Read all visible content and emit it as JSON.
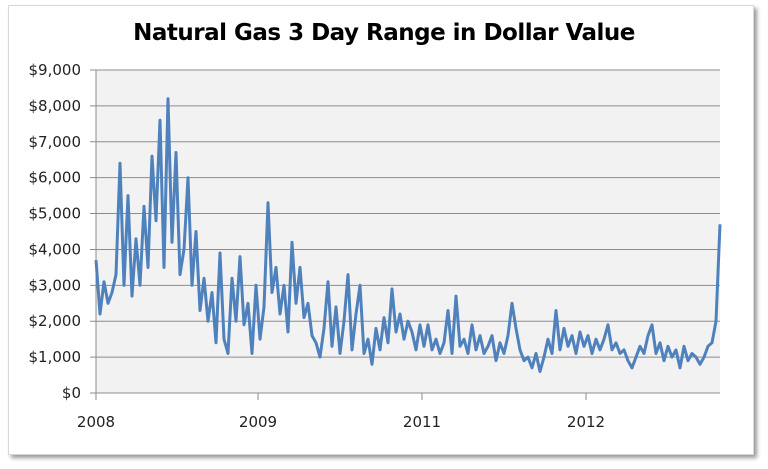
{
  "chart_data": {
    "type": "line",
    "title": "Natural Gas 3 Day Range in Dollar Value",
    "xlabel": "",
    "ylabel": "",
    "ylim": [
      0,
      9000
    ],
    "y_ticks": [
      0,
      1000,
      2000,
      3000,
      4000,
      5000,
      6000,
      7000,
      8000,
      9000
    ],
    "y_tick_labels": [
      "$0",
      "$1,000",
      "$2,000",
      "$3,000",
      "$4,000",
      "$5,000",
      "$6,000",
      "$7,000",
      "$8,000",
      "$9,000"
    ],
    "x_tick_labels": [
      "2008",
      "2009",
      "2011",
      "2012"
    ],
    "x_tick_point_index": [
      0,
      40.5,
      81.5,
      122.5
    ],
    "grid": "horizontal",
    "plot_background": "#f2f2f2",
    "line_color": "#4f81bd",
    "series": [
      {
        "values": [
          3700,
          2200,
          3100,
          2500,
          2800,
          3300,
          6400,
          3000,
          5500,
          2700,
          4300,
          3000,
          5200,
          3500,
          6600,
          4800,
          7600,
          3500,
          8200,
          4200,
          6700,
          3300,
          4000,
          6000,
          3000,
          4500,
          2300,
          3200,
          2000,
          2800,
          1400,
          3900,
          1500,
          1100,
          3200,
          2000,
          3800,
          1900,
          2500,
          1100,
          3000,
          1500,
          2400,
          5300,
          2800,
          3500,
          2200,
          3000,
          1700,
          4200,
          2500,
          3500,
          2100,
          2500,
          1600,
          1400,
          1000,
          1800,
          3100,
          1300,
          2400,
          1100,
          2000,
          3300,
          1200,
          2200,
          3000,
          1100,
          1500,
          800,
          1800,
          1200,
          2100,
          1400,
          2900,
          1700,
          2200,
          1500,
          2000,
          1700,
          1200,
          1900,
          1300,
          1900,
          1200,
          1500,
          1100,
          1400,
          2300,
          1100,
          2700,
          1300,
          1500,
          1100,
          1900,
          1200,
          1600,
          1100,
          1300,
          1600,
          900,
          1400,
          1100,
          1600,
          2500,
          1800,
          1200,
          900,
          1000,
          700,
          1100,
          600,
          1000,
          1500,
          1100,
          2300,
          1200,
          1800,
          1300,
          1600,
          1100,
          1700,
          1300,
          1600,
          1100,
          1500,
          1200,
          1500,
          1900,
          1200,
          1400,
          1100,
          1200,
          900,
          700,
          1000,
          1300,
          1100,
          1600,
          1900,
          1100,
          1400,
          900,
          1300,
          1000,
          1200,
          700,
          1300,
          900,
          1100,
          1000,
          800,
          1000,
          1300,
          1400,
          2000,
          4700
        ]
      }
    ]
  }
}
